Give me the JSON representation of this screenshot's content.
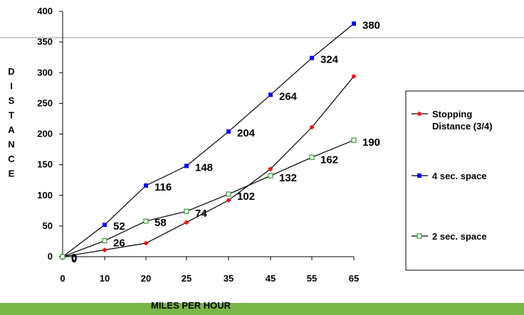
{
  "chart_data": {
    "type": "line",
    "title": "",
    "xlabel": "MILES PER HOUR",
    "ylabel": "DISTANCE",
    "x": [
      0,
      10,
      20,
      25,
      35,
      45,
      55,
      65
    ],
    "y_ticks": [
      0,
      50,
      100,
      150,
      200,
      250,
      300,
      350,
      400
    ],
    "ylim": [
      0,
      400
    ],
    "grid": false,
    "legend_position": "right",
    "series": [
      {
        "name": "Stopping Distance (3/4)",
        "color": "#ff0000",
        "marker": "diamond",
        "values": [
          0,
          11,
          22,
          56,
          92,
          143,
          211,
          294
        ],
        "labels": []
      },
      {
        "name": "4 sec. space",
        "color": "#0000ff",
        "marker": "square",
        "values": [
          0,
          52,
          116,
          148,
          204,
          264,
          324,
          380
        ],
        "labels": [
          "0",
          "52",
          "116",
          "148",
          "204",
          "264",
          "324",
          "380"
        ]
      },
      {
        "name": "2 sec. space",
        "color": "#339933",
        "marker": "square-open",
        "values": [
          0,
          26,
          58,
          74,
          102,
          132,
          162,
          190
        ],
        "labels": [
          "0",
          "26",
          "58",
          "74",
          "102",
          "132",
          "162",
          "190"
        ]
      }
    ]
  }
}
